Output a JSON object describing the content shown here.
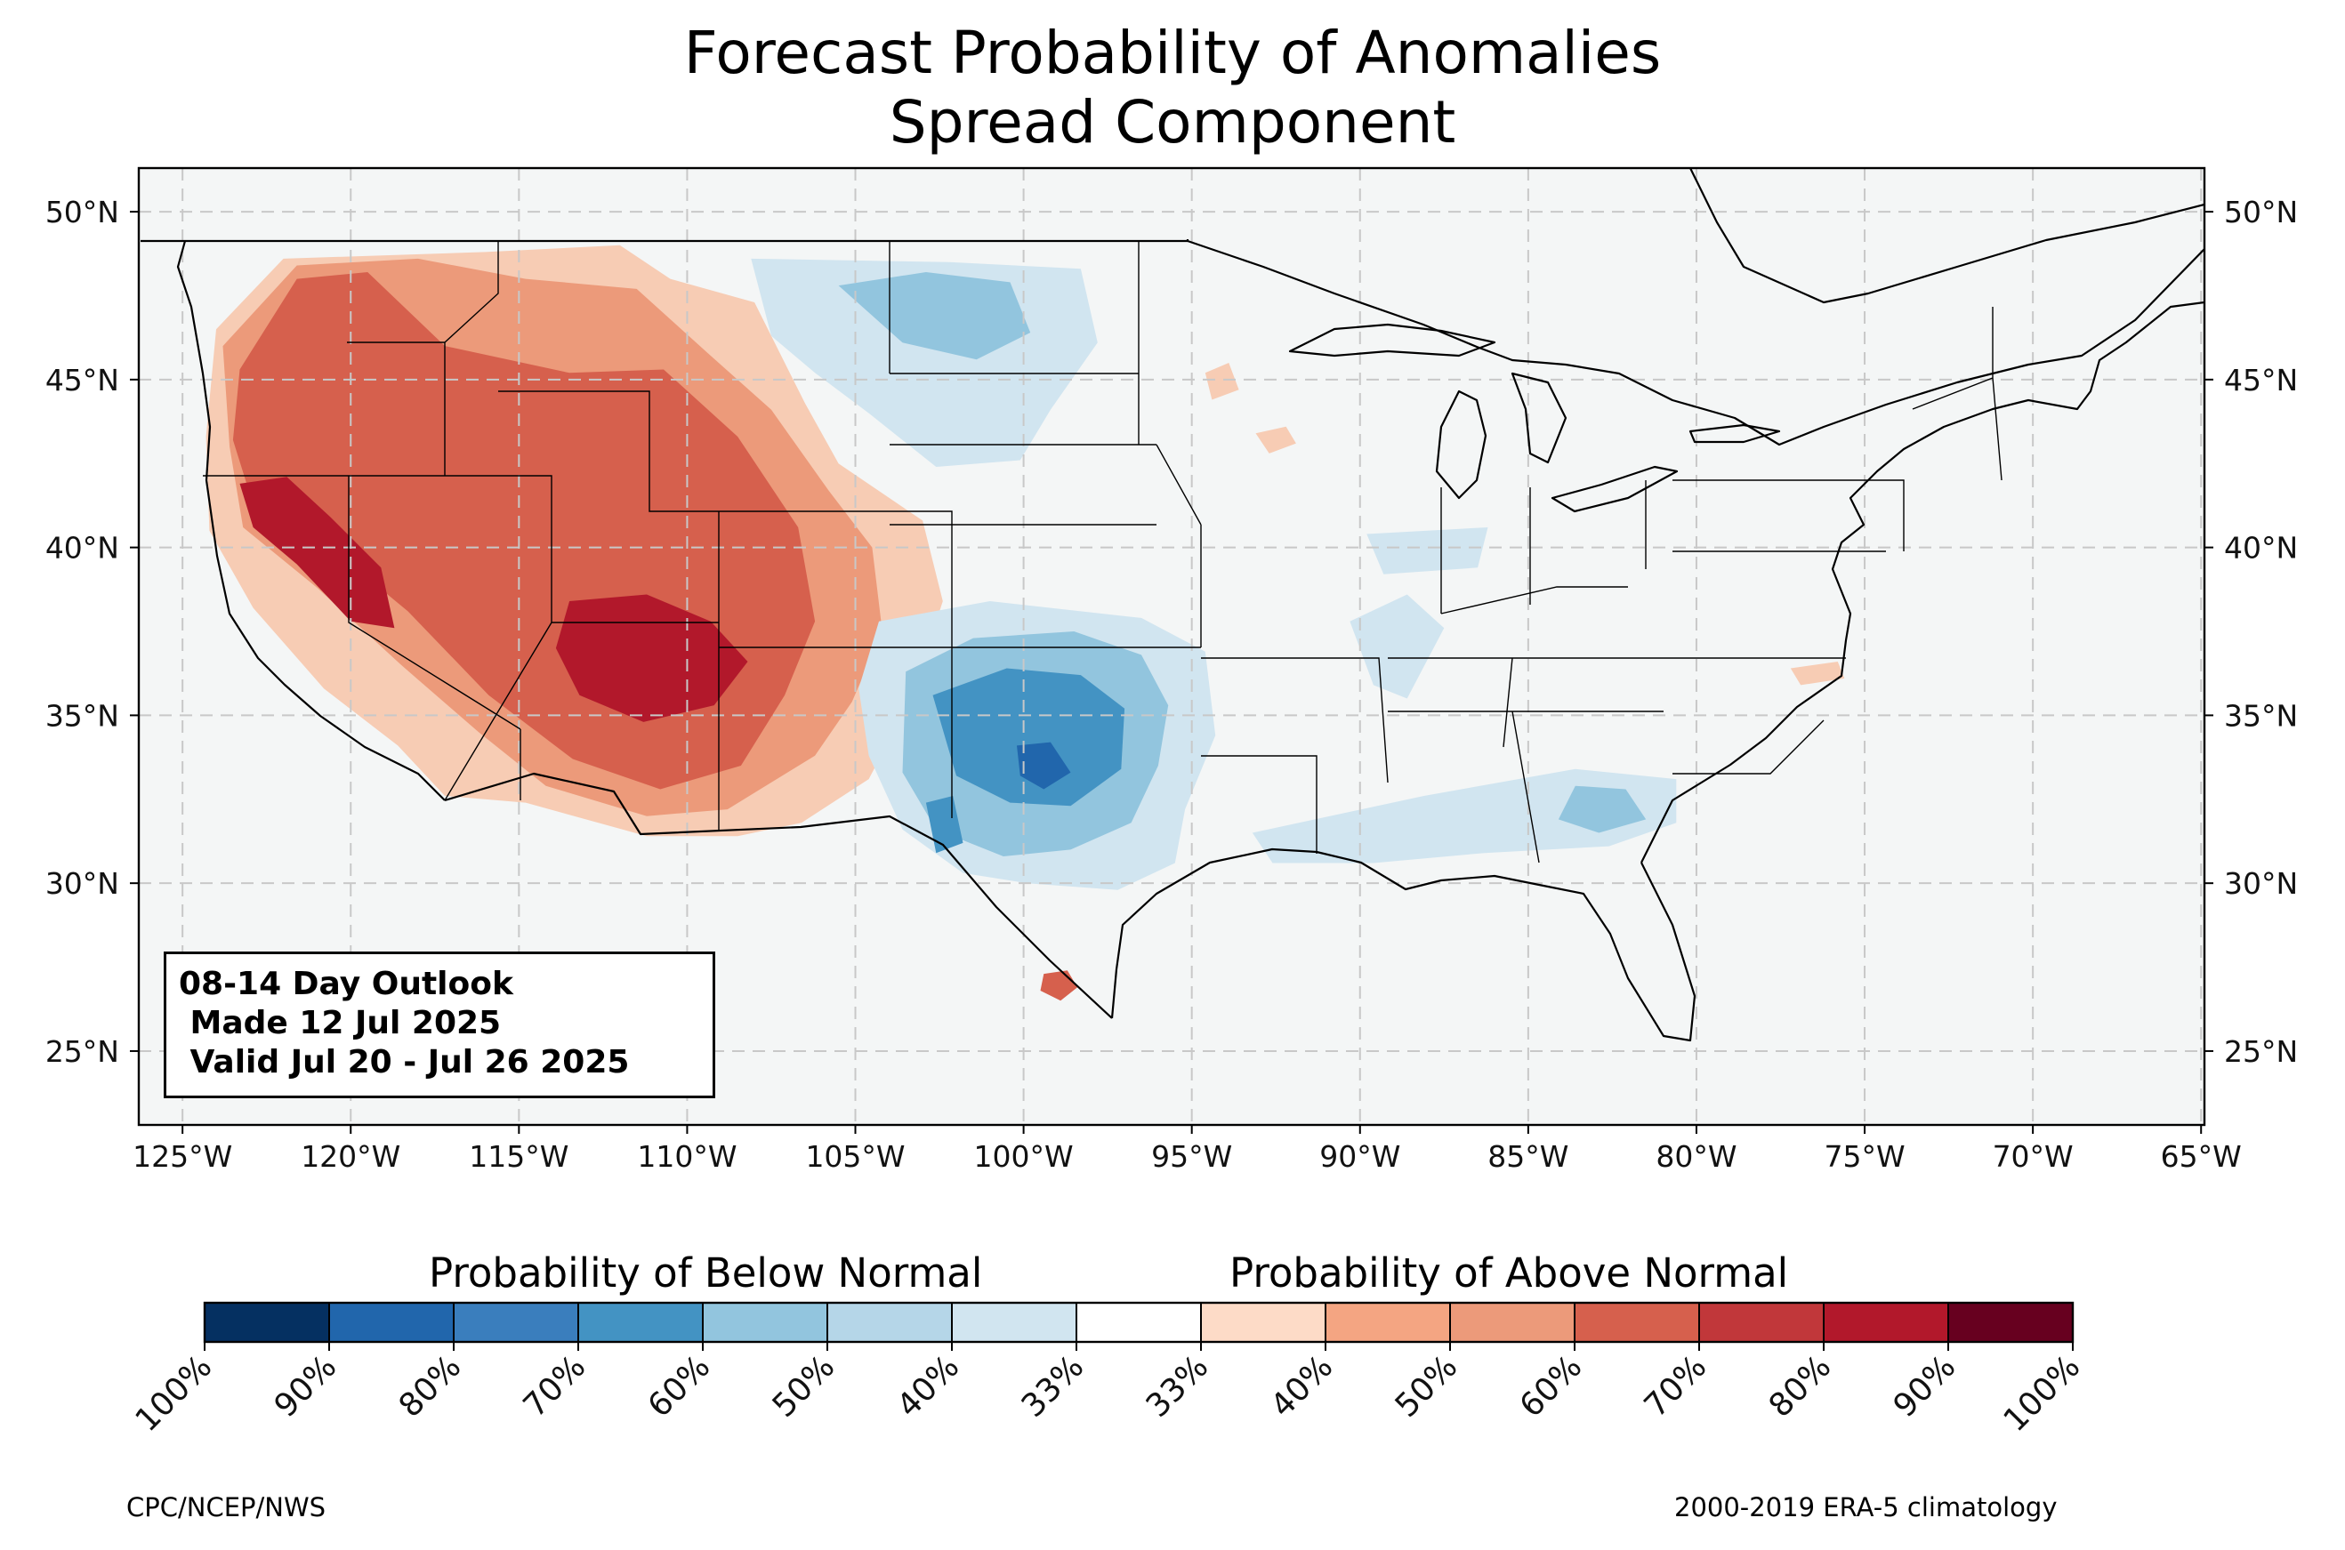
{
  "title": {
    "line1": "Forecast Probability of Anomalies",
    "line2": "Spread Component"
  },
  "info_box": {
    "line1": "08-14 Day Outlook",
    "line2": " Made 12 Jul 2025",
    "line3": " Valid Jul 20 - Jul 26 2025"
  },
  "map": {
    "latitude_labels": [
      "50°N",
      "45°N",
      "40°N",
      "35°N",
      "30°N",
      "25°N"
    ],
    "longitude_labels": [
      "125°W",
      "120°W",
      "115°W",
      "110°W",
      "105°W",
      "100°W",
      "95°W",
      "90°W",
      "85°W",
      "80°W",
      "75°W",
      "70°W",
      "65°W"
    ],
    "lon_range": [
      -126.3,
      -64.9
    ],
    "lat_range": [
      22.8,
      51.3
    ],
    "grid": "dashed",
    "regions": [
      {
        "category": "above",
        "level": "40%",
        "color": "#f7ccb4",
        "points": [
          [
            -124,
            46.5
          ],
          [
            -122,
            48.6
          ],
          [
            -116,
            48.8
          ],
          [
            -112,
            49
          ],
          [
            -110.5,
            48
          ],
          [
            -108,
            47.3
          ],
          [
            -106.5,
            44.3
          ],
          [
            -105.5,
            42.5
          ],
          [
            -103,
            40.8
          ],
          [
            -102.4,
            38.4
          ],
          [
            -103.3,
            35.6
          ],
          [
            -104.6,
            33.1
          ],
          [
            -106.6,
            31.8
          ],
          [
            -108.5,
            31.4
          ],
          [
            -111.2,
            31.4
          ],
          [
            -114.8,
            32.4
          ],
          [
            -117.2,
            32.6
          ],
          [
            -118.6,
            34.1
          ],
          [
            -120.8,
            35.8
          ],
          [
            -122.9,
            38.2
          ],
          [
            -124.2,
            40.5
          ],
          [
            -124.3,
            43.3
          ]
        ]
      },
      {
        "category": "above",
        "level": "50%",
        "color": "#ec9a7a",
        "points": [
          [
            -123.8,
            46
          ],
          [
            -121.6,
            48.4
          ],
          [
            -118,
            48.6
          ],
          [
            -114.8,
            48
          ],
          [
            -111.5,
            47.7
          ],
          [
            -109.4,
            45.8
          ],
          [
            -107.5,
            44.1
          ],
          [
            -105.8,
            41.7
          ],
          [
            -104.5,
            40
          ],
          [
            -104.2,
            37.5
          ],
          [
            -105.1,
            35.4
          ],
          [
            -106.2,
            33.8
          ],
          [
            -108.8,
            32.2
          ],
          [
            -111.2,
            32
          ],
          [
            -114.2,
            32.9
          ],
          [
            -116.2,
            34.5
          ],
          [
            -118.5,
            36.5
          ],
          [
            -121,
            38.8
          ],
          [
            -123.2,
            40.6
          ],
          [
            -123.6,
            43
          ]
        ]
      },
      {
        "category": "above",
        "level": "60%",
        "color": "#d6604d",
        "points": [
          [
            -123.3,
            45.3
          ],
          [
            -121.6,
            48
          ],
          [
            -119.5,
            48.2
          ],
          [
            -117.2,
            46
          ],
          [
            -113.5,
            45.2
          ],
          [
            -110.7,
            45.3
          ],
          [
            -108.5,
            43.3
          ],
          [
            -106.7,
            40.6
          ],
          [
            -106.2,
            37.8
          ],
          [
            -107.1,
            35.6
          ],
          [
            -108.4,
            33.5
          ],
          [
            -110.8,
            32.8
          ],
          [
            -113.4,
            33.7
          ],
          [
            -115.9,
            35.6
          ],
          [
            -118.3,
            38.1
          ],
          [
            -121.2,
            40.5
          ],
          [
            -123,
            41.6
          ],
          [
            -123.5,
            43.2
          ]
        ]
      },
      {
        "category": "above",
        "level": "70%",
        "color": "#b2182b",
        "points": [
          [
            -123.3,
            41.9
          ],
          [
            -121.9,
            42.1
          ],
          [
            -120.6,
            40.9
          ],
          [
            -119.1,
            39.4
          ],
          [
            -118.7,
            37.6
          ],
          [
            -120,
            37.8
          ],
          [
            -121.6,
            39.5
          ],
          [
            -122.9,
            40.6
          ]
        ]
      },
      {
        "category": "above",
        "level": "70%",
        "color": "#b2182b",
        "points": [
          [
            -113.5,
            38.4
          ],
          [
            -111.2,
            38.6
          ],
          [
            -109.3,
            37.8
          ],
          [
            -108.2,
            36.6
          ],
          [
            -109.2,
            35.3
          ],
          [
            -111.3,
            34.8
          ],
          [
            -113.2,
            35.6
          ],
          [
            -113.9,
            37
          ]
        ]
      },
      {
        "category": "above",
        "level": "60%",
        "color": "#d6604d",
        "points": [
          [
            -99.4,
            27.3
          ],
          [
            -98.7,
            27.4
          ],
          [
            -98.4,
            26.9
          ],
          [
            -98.9,
            26.5
          ],
          [
            -99.5,
            26.8
          ]
        ]
      },
      {
        "category": "above",
        "level": "40%",
        "color": "#f7ccb4",
        "points": [
          [
            -93.1,
            43.4
          ],
          [
            -92.2,
            43.6
          ],
          [
            -91.9,
            43.1
          ],
          [
            -92.7,
            42.8
          ]
        ]
      },
      {
        "category": "above",
        "level": "40%",
        "color": "#f7ccb4",
        "points": [
          [
            -94.6,
            45.2
          ],
          [
            -93.9,
            45.5
          ],
          [
            -93.6,
            44.7
          ],
          [
            -94.4,
            44.4
          ]
        ]
      },
      {
        "category": "above",
        "level": "40%",
        "color": "#f7ccb4",
        "points": [
          [
            -77.2,
            36.4
          ],
          [
            -75.8,
            36.6
          ],
          [
            -75.6,
            36.1
          ],
          [
            -76.9,
            35.9
          ]
        ]
      },
      {
        "category": "below",
        "level": "40%",
        "color": "#d1e5f0",
        "points": [
          [
            -104.3,
            37.8
          ],
          [
            -101,
            38.4
          ],
          [
            -96.5,
            37.9
          ],
          [
            -94.6,
            36.9
          ],
          [
            -94.3,
            34.4
          ],
          [
            -95.2,
            32.2
          ],
          [
            -95.5,
            30.6
          ],
          [
            -97.2,
            29.8
          ],
          [
            -99.9,
            30
          ],
          [
            -101.8,
            30.3
          ],
          [
            -103.6,
            31.6
          ],
          [
            -104.6,
            33.8
          ],
          [
            -104.9,
            35.8
          ]
        ]
      },
      {
        "category": "below",
        "level": "50%",
        "color": "#92c5de",
        "points": [
          [
            -103.5,
            36.3
          ],
          [
            -101.5,
            37.3
          ],
          [
            -98.5,
            37.5
          ],
          [
            -96.5,
            36.8
          ],
          [
            -95.7,
            35.3
          ],
          [
            -96,
            33.5
          ],
          [
            -96.8,
            31.8
          ],
          [
            -98.6,
            31
          ],
          [
            -100.6,
            30.8
          ],
          [
            -102.6,
            31.6
          ],
          [
            -103.6,
            33.3
          ]
        ]
      },
      {
        "category": "below",
        "level": "60%",
        "color": "#4393c3",
        "points": [
          [
            -102.7,
            35.6
          ],
          [
            -100.5,
            36.4
          ],
          [
            -98.3,
            36.2
          ],
          [
            -97,
            35.2
          ],
          [
            -97.1,
            33.4
          ],
          [
            -98.6,
            32.3
          ],
          [
            -100.4,
            32.4
          ],
          [
            -102,
            33.2
          ]
        ]
      },
      {
        "category": "below",
        "level": "60%",
        "color": "#4393c3",
        "points": [
          [
            -102.9,
            32.4
          ],
          [
            -102.1,
            32.6
          ],
          [
            -101.8,
            31.2
          ],
          [
            -102.6,
            30.9
          ]
        ]
      },
      {
        "category": "below",
        "level": "70%",
        "color": "#2166ac",
        "points": [
          [
            -100.2,
            34.1
          ],
          [
            -99.2,
            34.2
          ],
          [
            -98.6,
            33.3
          ],
          [
            -99.4,
            32.8
          ],
          [
            -100.1,
            33.2
          ]
        ]
      },
      {
        "category": "below",
        "level": "40%",
        "color": "#d1e5f0",
        "points": [
          [
            -108.1,
            48.6
          ],
          [
            -102.2,
            48.5
          ],
          [
            -98.3,
            48.3
          ],
          [
            -97.8,
            46.1
          ],
          [
            -99.2,
            44.1
          ],
          [
            -100.1,
            42.6
          ],
          [
            -102.6,
            42.4
          ],
          [
            -104.6,
            44
          ],
          [
            -106.2,
            45.2
          ],
          [
            -107.5,
            46.3
          ]
        ]
      },
      {
        "category": "below",
        "level": "50%",
        "color": "#92c5de",
        "points": [
          [
            -105.5,
            47.8
          ],
          [
            -102.9,
            48.2
          ],
          [
            -100.4,
            47.9
          ],
          [
            -99.8,
            46.4
          ],
          [
            -101.4,
            45.6
          ],
          [
            -103.6,
            46.1
          ]
        ]
      },
      {
        "category": "below",
        "level": "40%",
        "color": "#d1e5f0",
        "points": [
          [
            -93.2,
            31.5
          ],
          [
            -88.1,
            32.6
          ],
          [
            -83.6,
            33.4
          ],
          [
            -80.6,
            33.1
          ],
          [
            -80.6,
            31.8
          ],
          [
            -82.6,
            31.1
          ],
          [
            -86.3,
            30.9
          ],
          [
            -89.6,
            30.6
          ],
          [
            -92.6,
            30.6
          ]
        ]
      },
      {
        "category": "below",
        "level": "50%",
        "color": "#92c5de",
        "points": [
          [
            -83.6,
            32.9
          ],
          [
            -82.1,
            32.8
          ],
          [
            -81.5,
            31.9
          ],
          [
            -82.9,
            31.5
          ],
          [
            -84.1,
            31.9
          ]
        ]
      },
      {
        "category": "below",
        "level": "40%",
        "color": "#d1e5f0",
        "points": [
          [
            -90.3,
            37.8
          ],
          [
            -88.6,
            38.6
          ],
          [
            -87.5,
            37.6
          ],
          [
            -88.6,
            35.5
          ],
          [
            -89.6,
            35.9
          ]
        ]
      },
      {
        "category": "below",
        "level": "40%",
        "color": "#d1e5f0",
        "points": [
          [
            -89.8,
            40.4
          ],
          [
            -86.2,
            40.6
          ],
          [
            -86.5,
            39.4
          ],
          [
            -89.3,
            39.2
          ]
        ]
      }
    ]
  },
  "colorbar": {
    "below_label": "Probability of Below Normal",
    "above_label": "Probability of Above Normal",
    "colors": [
      "#053061",
      "#2166ac",
      "#3a7ebd",
      "#4393c3",
      "#92c5de",
      "#b5d6e8",
      "#d1e5f0",
      "#ffffff",
      "#fddbc7",
      "#f4a582",
      "#ec9a7a",
      "#d6604d",
      "#c1373a",
      "#b2182b",
      "#67001f"
    ],
    "tick_labels": [
      "100%",
      "90%",
      "80%",
      "70%",
      "60%",
      "50%",
      "40%",
      "33%",
      "33%",
      "40%",
      "50%",
      "60%",
      "70%",
      "80%",
      "90%",
      "100%"
    ]
  },
  "footer": {
    "left": "CPC/NCEP/NWS",
    "right": "2000-2019 ERA-5 climatology"
  }
}
